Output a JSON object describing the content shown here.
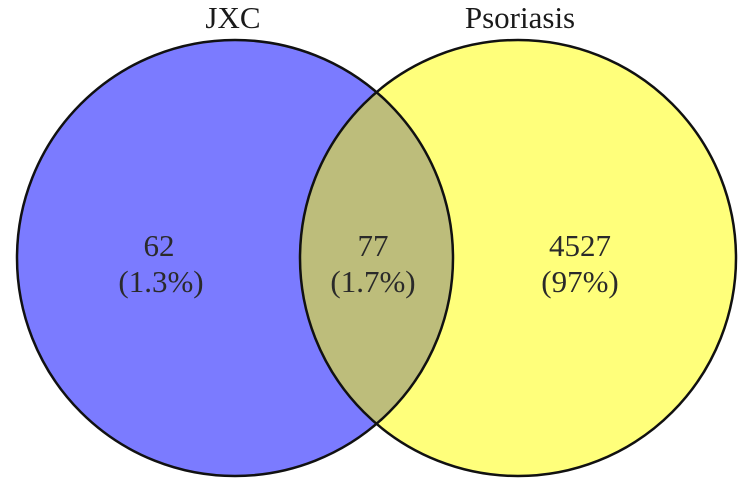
{
  "venn": {
    "sets": [
      {
        "label": "JXC",
        "color": "#7b7bff"
      },
      {
        "label": "Psoriasis",
        "color": "#ffff7b"
      }
    ],
    "overlap_color": "#bdbd7b",
    "regions": [
      {
        "name": "JXC only",
        "count": "62",
        "percent": "(1.3%)"
      },
      {
        "name": "JXC and Psoriasis",
        "count": "77",
        "percent": "(1.7%)"
      },
      {
        "name": "Psoriasis only",
        "count": "4527",
        "percent": "(97%)"
      }
    ]
  }
}
